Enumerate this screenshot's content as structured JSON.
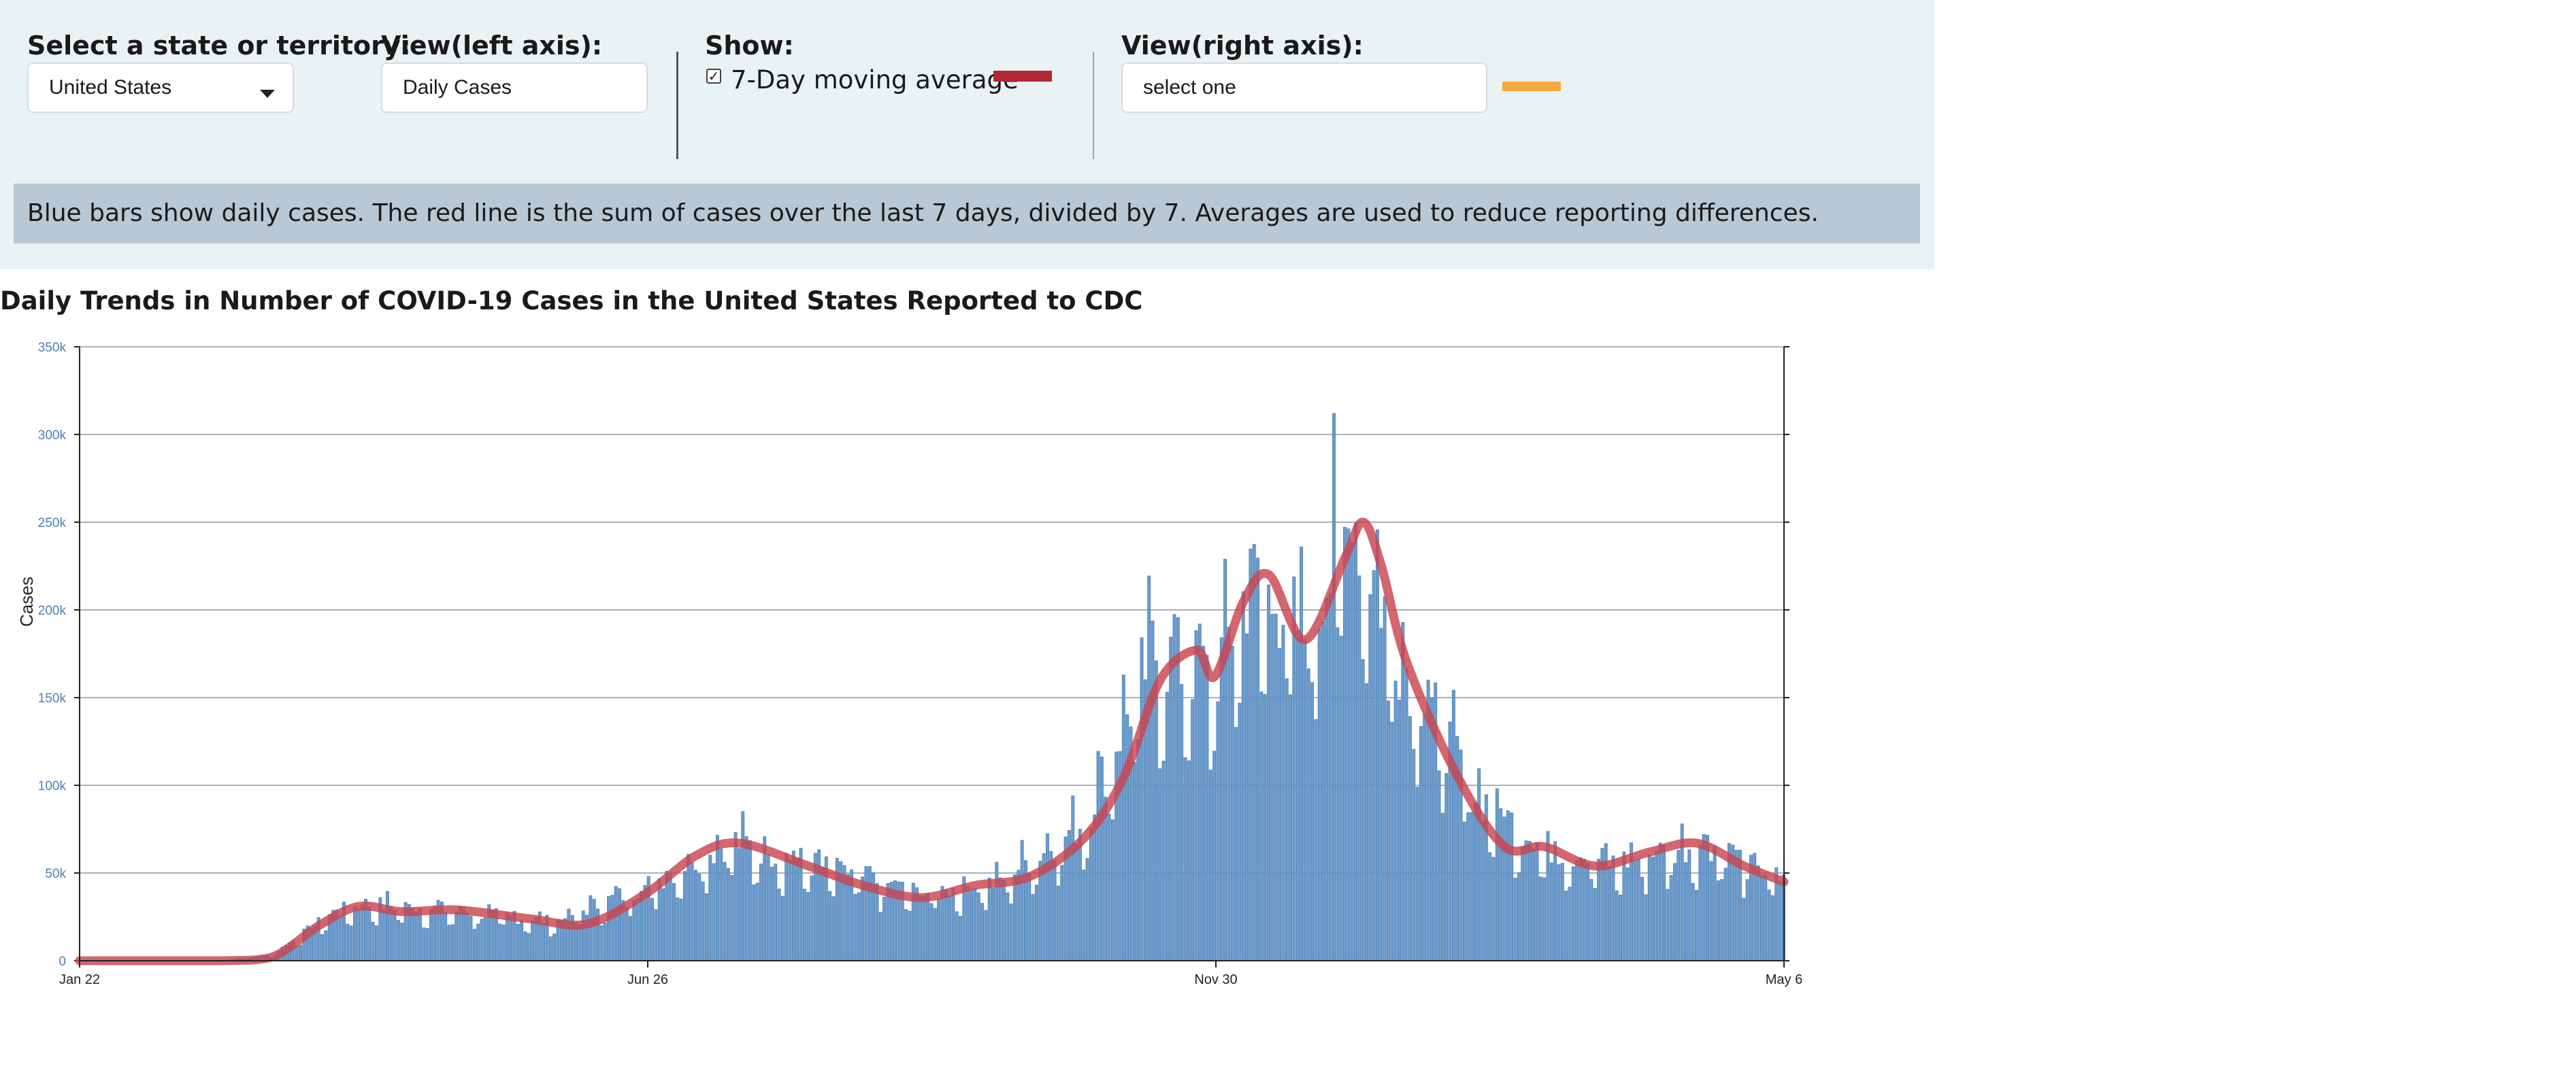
{
  "controls": {
    "state_label": "Select a state or territory:",
    "state_value": "United States",
    "left_axis_label": "View(left axis):",
    "left_axis_value": "Daily Cases",
    "show_label": "Show:",
    "moving_avg_label": "7-Day moving average",
    "moving_avg_checked": true,
    "right_axis_label": "View(right axis):",
    "right_axis_value": "select one",
    "colors": {
      "moving_avg": "#b22833",
      "right_axis": "#f5a942",
      "bars": "#6c9ccd",
      "line": "#c9444e"
    }
  },
  "note": "Blue bars show daily cases. The red line is the sum of cases over the last 7 days, divided by 7. Averages are used to reduce reporting differences.",
  "chart_data": {
    "type": "bar",
    "title": "Daily Trends in Number of COVID-19 Cases in the United States Reported to CDC",
    "ylabel": "Cases",
    "xlabel": "",
    "x_tick_labels": [
      "Jan 22",
      "Jun 26",
      "Nov 30",
      "May 6"
    ],
    "y_tick_labels": [
      "0",
      "50k",
      "100k",
      "150k",
      "200k",
      "250k",
      "300k",
      "350k"
    ],
    "y_ticks": [
      0,
      50000,
      100000,
      150000,
      200000,
      250000,
      300000,
      350000
    ],
    "ylim": [
      0,
      350000
    ],
    "x_start": "2020-01-22",
    "x_end": "2021-05-06",
    "grid": true,
    "series": [
      {
        "kind": "bar",
        "daily_cases_monthly_checkpoints": [
          {
            "date": "2020-01-22",
            "value": 0
          },
          {
            "date": "2020-03-01",
            "value": 0
          },
          {
            "date": "2020-03-15",
            "value": 3000
          },
          {
            "date": "2020-04-01",
            "value": 27000
          },
          {
            "date": "2020-04-10",
            "value": 32000
          },
          {
            "date": "2020-05-01",
            "value": 29000
          },
          {
            "date": "2020-06-01",
            "value": 22000
          },
          {
            "date": "2020-06-26",
            "value": 42000
          },
          {
            "date": "2020-07-20",
            "value": 68000
          },
          {
            "date": "2020-08-15",
            "value": 52000
          },
          {
            "date": "2020-09-10",
            "value": 38000
          },
          {
            "date": "2020-10-01",
            "value": 44000
          },
          {
            "date": "2020-10-25",
            "value": 78000
          },
          {
            "date": "2020-11-13",
            "value": 175000
          },
          {
            "date": "2020-11-30",
            "value": 160000
          },
          {
            "date": "2020-12-10",
            "value": 215000
          },
          {
            "date": "2020-12-25",
            "value": 185000
          },
          {
            "date": "2021-01-08",
            "value": 250000
          },
          {
            "date": "2021-01-20",
            "value": 175000
          },
          {
            "date": "2021-02-10",
            "value": 95000
          },
          {
            "date": "2021-02-28",
            "value": 65000
          },
          {
            "date": "2021-03-20",
            "value": 55000
          },
          {
            "date": "2021-04-15",
            "value": 67000
          },
          {
            "date": "2021-05-06",
            "value": 45000
          }
        ],
        "peak": {
          "date": "2021-01-02",
          "value": 312000
        }
      },
      {
        "kind": "line",
        "name": "7-Day moving average",
        "points": [
          {
            "date": "2020-01-22",
            "value": 0
          },
          {
            "date": "2020-03-01",
            "value": 0
          },
          {
            "date": "2020-03-15",
            "value": 2000
          },
          {
            "date": "2020-03-28",
            "value": 20000
          },
          {
            "date": "2020-04-08",
            "value": 31000
          },
          {
            "date": "2020-04-20",
            "value": 28000
          },
          {
            "date": "2020-05-05",
            "value": 29000
          },
          {
            "date": "2020-05-25",
            "value": 24000
          },
          {
            "date": "2020-06-10",
            "value": 21000
          },
          {
            "date": "2020-06-26",
            "value": 38000
          },
          {
            "date": "2020-07-10",
            "value": 60000
          },
          {
            "date": "2020-07-22",
            "value": 67000
          },
          {
            "date": "2020-08-10",
            "value": 54000
          },
          {
            "date": "2020-08-25",
            "value": 43000
          },
          {
            "date": "2020-09-10",
            "value": 36000
          },
          {
            "date": "2020-09-25",
            "value": 43000
          },
          {
            "date": "2020-10-10",
            "value": 48000
          },
          {
            "date": "2020-10-25",
            "value": 70000
          },
          {
            "date": "2020-11-05",
            "value": 105000
          },
          {
            "date": "2020-11-15",
            "value": 160000
          },
          {
            "date": "2020-11-25",
            "value": 177000
          },
          {
            "date": "2020-11-30",
            "value": 162000
          },
          {
            "date": "2020-12-08",
            "value": 205000
          },
          {
            "date": "2020-12-15",
            "value": 220000
          },
          {
            "date": "2020-12-25",
            "value": 183000
          },
          {
            "date": "2021-01-05",
            "value": 230000
          },
          {
            "date": "2021-01-10",
            "value": 250000
          },
          {
            "date": "2021-01-15",
            "value": 225000
          },
          {
            "date": "2021-01-22",
            "value": 170000
          },
          {
            "date": "2021-02-05",
            "value": 105000
          },
          {
            "date": "2021-02-18",
            "value": 65000
          },
          {
            "date": "2021-03-01",
            "value": 65000
          },
          {
            "date": "2021-03-15",
            "value": 54000
          },
          {
            "date": "2021-03-30",
            "value": 62000
          },
          {
            "date": "2021-04-12",
            "value": 67000
          },
          {
            "date": "2021-04-25",
            "value": 54000
          },
          {
            "date": "2021-05-06",
            "value": 45000
          }
        ]
      }
    ]
  }
}
